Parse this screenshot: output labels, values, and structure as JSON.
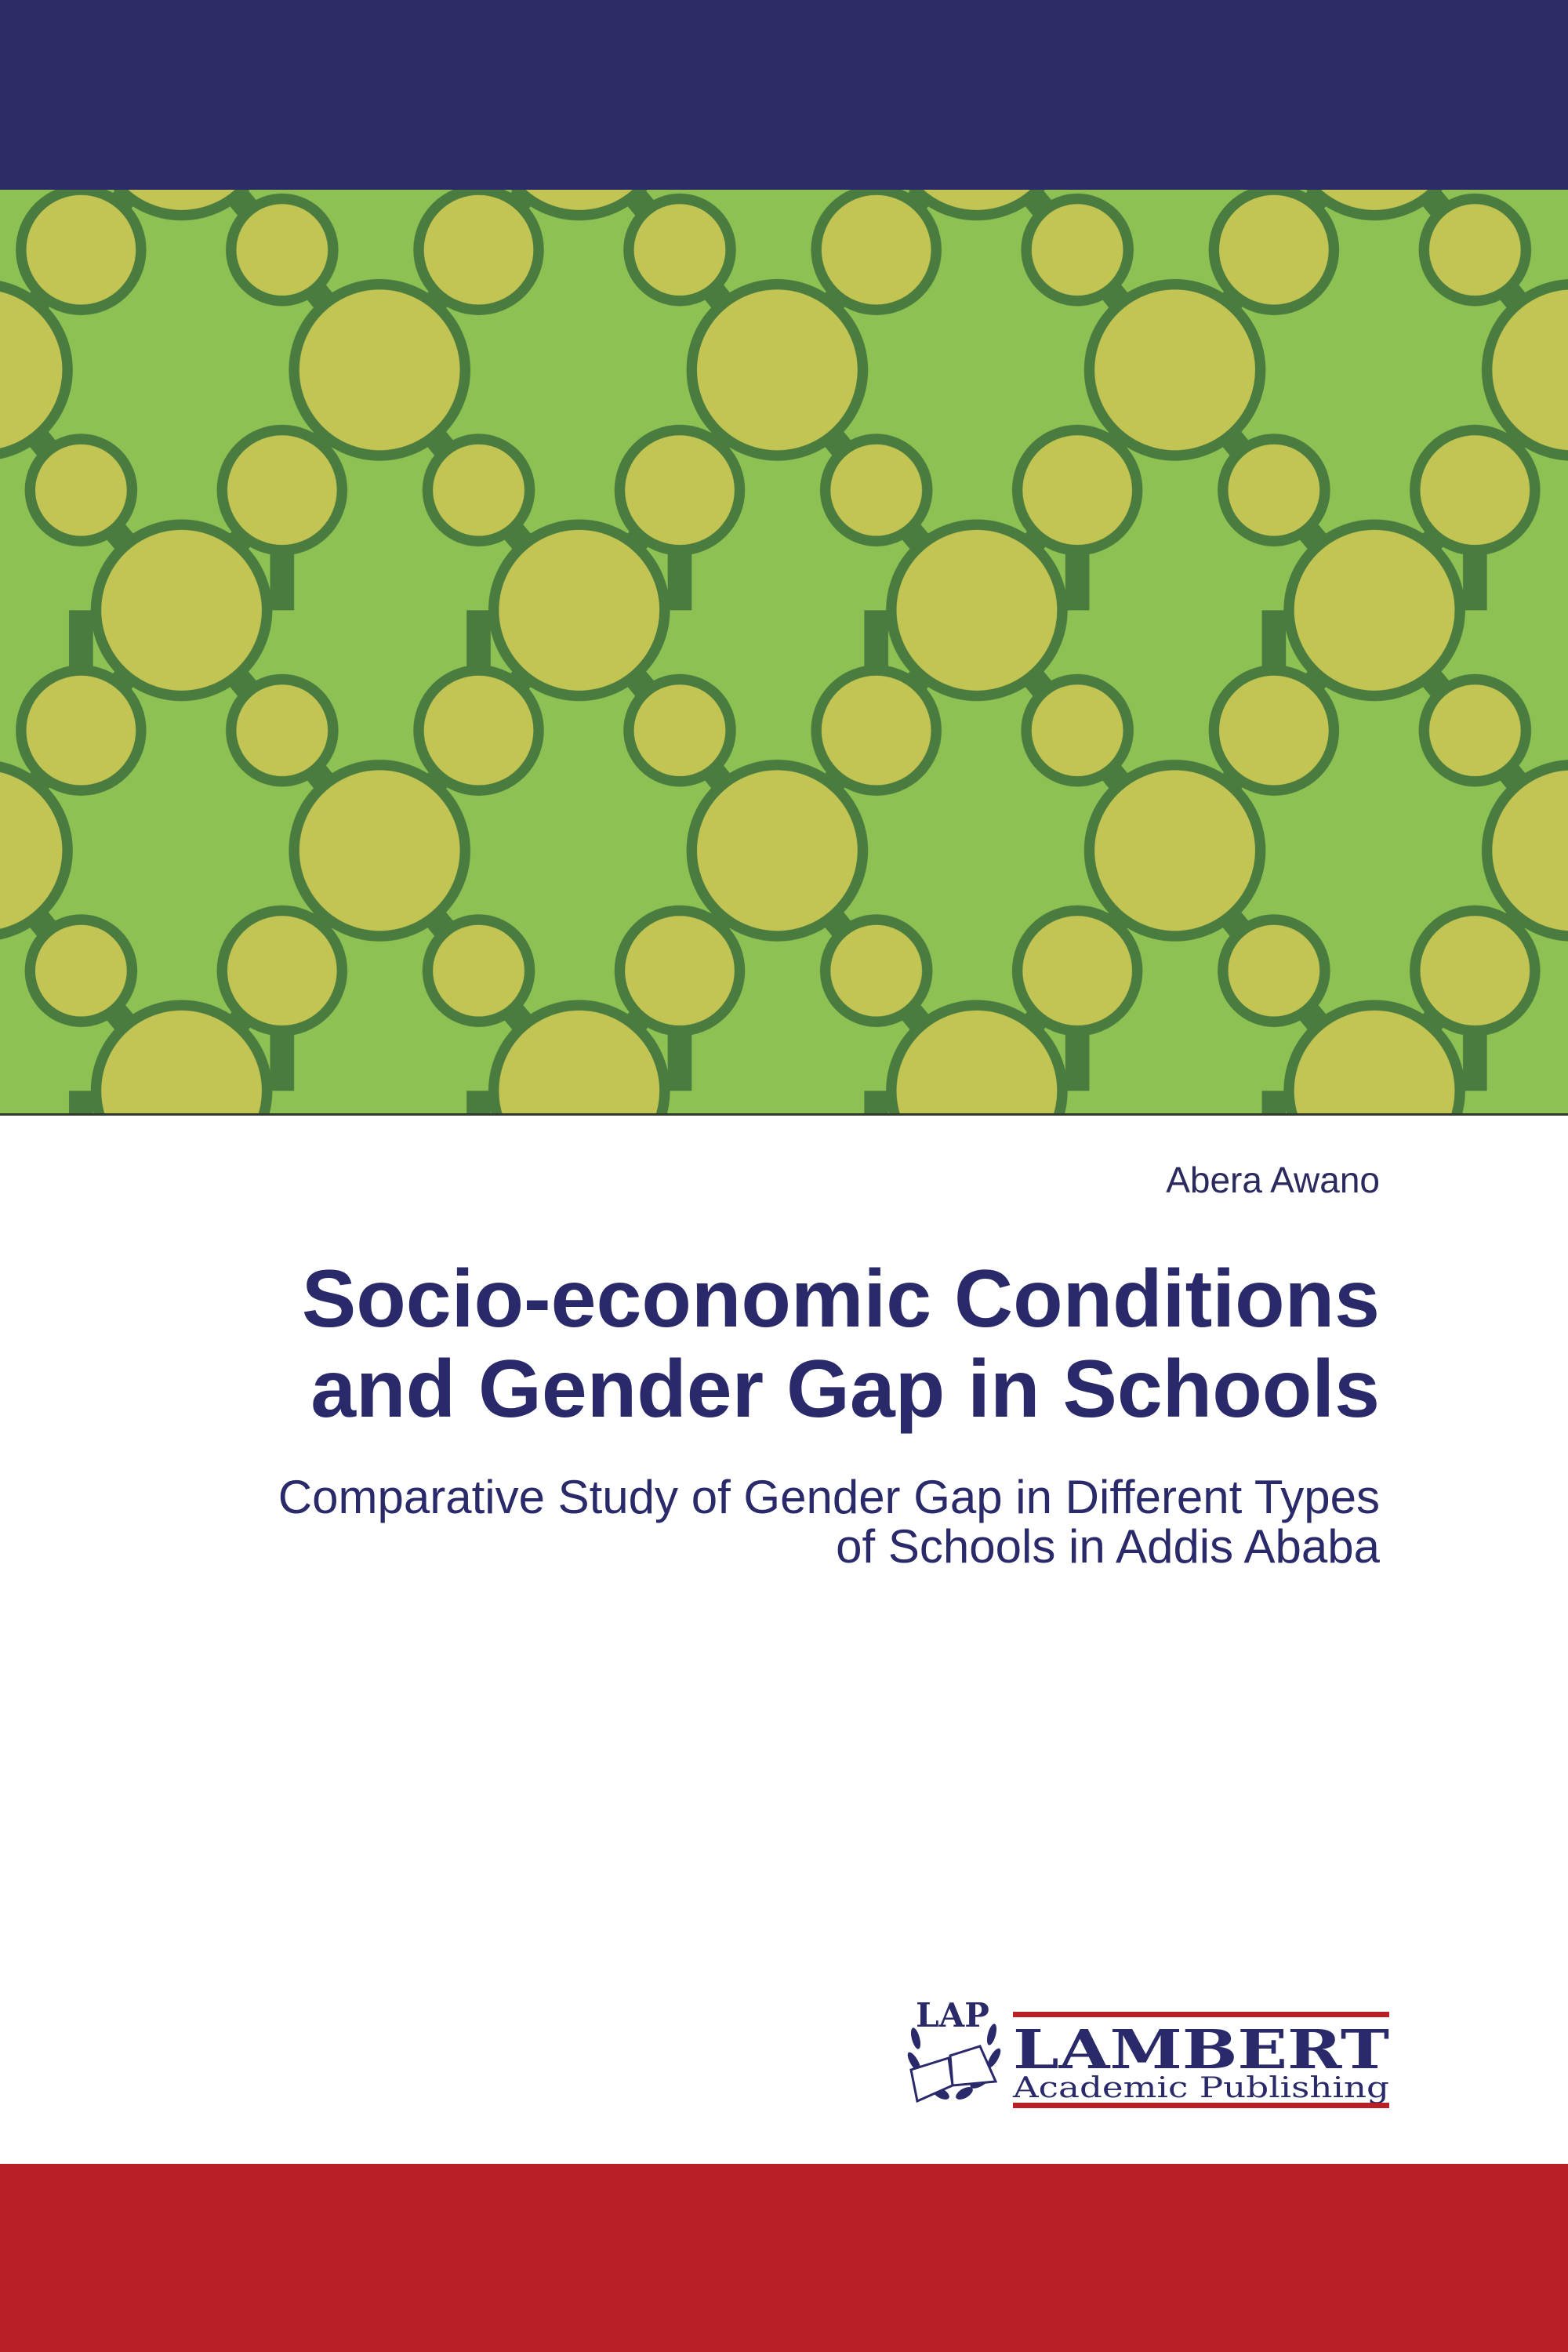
{
  "colors": {
    "top_band": "#2d2b66",
    "pattern_bg": "#8dc153",
    "pattern_line": "#4a7c3f",
    "pattern_circle": "#c2c453",
    "text": "#2a2a6a",
    "bottom_band": "#b92025"
  },
  "cover": {
    "author": "Abera Awano",
    "title_line1": "Socio-economic Conditions",
    "title_line2": "and Gender Gap in Schools",
    "subtitle_line1": "Comparative Study of Gender Gap in Different Types",
    "subtitle_line2": "of Schools in Addis Ababa"
  },
  "publisher": {
    "emblem": "LAP",
    "name": "LAMBERT",
    "tagline": "Academic Publishing"
  }
}
